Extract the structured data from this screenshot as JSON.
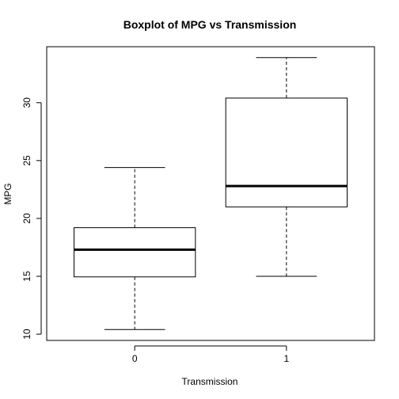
{
  "chart_data": {
    "type": "boxplot",
    "title": "Boxplot of MPG vs Transmission",
    "xlabel": "Transmission",
    "ylabel": "MPG",
    "categories": [
      "0",
      "1"
    ],
    "boxes": [
      {
        "category": "0",
        "min": 10.4,
        "q1": 14.95,
        "median": 17.3,
        "q3": 19.2,
        "max": 24.4
      },
      {
        "category": "1",
        "min": 15.0,
        "q1": 21.0,
        "median": 22.8,
        "q3": 30.4,
        "max": 33.9
      }
    ],
    "yticks": [
      10,
      15,
      20,
      25,
      30
    ],
    "ylim": [
      9.46,
      34.84
    ],
    "grid": false
  }
}
